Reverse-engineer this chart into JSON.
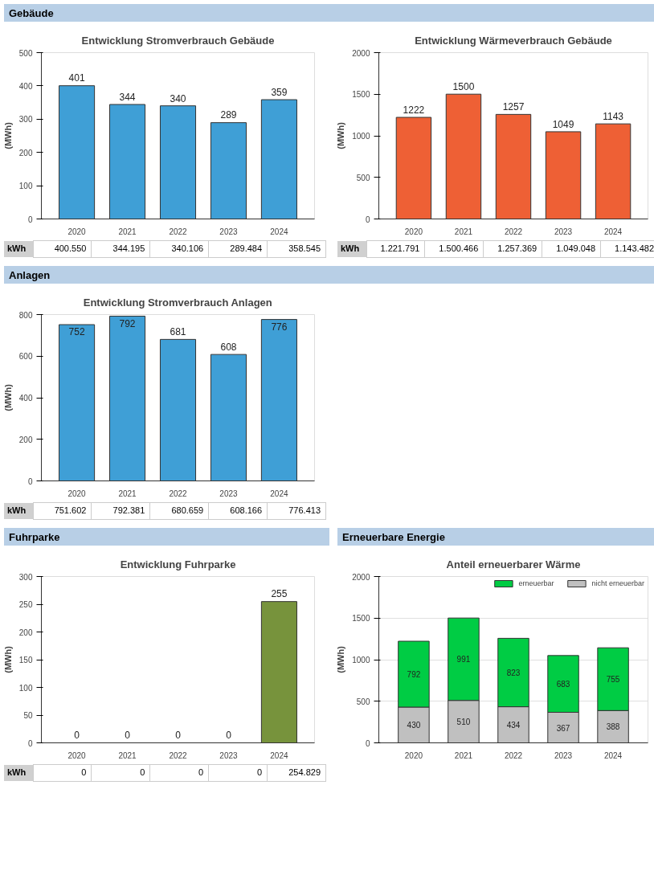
{
  "chart_data": [
    {
      "type": "bar",
      "title": "Entwicklung Stromverbrauch Gebäude",
      "ylabel": "(MWh)",
      "categories": [
        "2020",
        "2021",
        "2022",
        "2023",
        "2024"
      ],
      "values": [
        400.55,
        344.195,
        340.106,
        289.484,
        358.545
      ],
      "color": "#3f9fd6",
      "value_labels": [
        "401",
        "344",
        "340",
        "289",
        "359"
      ],
      "ylim": [
        0,
        500
      ],
      "yticks": [
        0,
        100,
        200,
        300,
        400,
        500
      ],
      "annotations": [
        "Gebäude",
        "kWh",
        "400.550",
        "344.195",
        "340.106",
        "289.484",
        "358.545"
      ]
    },
    {
      "type": "bar",
      "title": "Entwicklung Wärmeverbrauch Gebäude",
      "ylabel": "(MWh)",
      "categories": [
        "2020",
        "2021",
        "2022",
        "2023",
        "2024"
      ],
      "values": [
        1221.791,
        1500.466,
        1257.369,
        1049.048,
        1143.482
      ],
      "color": "#ee6035",
      "value_labels": [
        "1222",
        "1500",
        "1257",
        "1049",
        "1143"
      ],
      "ylim": [
        0,
        2000
      ],
      "yticks": [
        0,
        500,
        1000,
        1500,
        2000
      ],
      "annotations": [
        "kWh",
        "1.221.791",
        "1.500.466",
        "1.257.369",
        "1.049.048",
        "1.143.482"
      ]
    },
    {
      "type": "bar",
      "title": "Entwicklung Stromverbrauch Anlagen",
      "ylabel": "(MWh)",
      "categories": [
        "2020",
        "2021",
        "2022",
        "2023",
        "2024"
      ],
      "values": [
        751.602,
        792.381,
        680.659,
        608.166,
        776.413
      ],
      "color": "#3f9fd6",
      "value_labels": [
        "752",
        "792",
        "681",
        "608",
        "776"
      ],
      "ylim": [
        0,
        800
      ],
      "yticks": [
        0,
        200,
        400,
        600,
        800
      ],
      "annotations": [
        "Anlagen",
        "kWh",
        "751.602",
        "792.381",
        "680.659",
        "608.166",
        "776.413"
      ]
    },
    {
      "type": "bar",
      "title": "Entwicklung Fuhrparke",
      "ylabel": "(MWh)",
      "categories": [
        "2020",
        "2021",
        "2022",
        "2023",
        "2024"
      ],
      "values": [
        0,
        0,
        0,
        0,
        254.829
      ],
      "color": "#77933c",
      "value_labels": [
        "0",
        "0",
        "0",
        "0",
        "255"
      ],
      "ylim": [
        0,
        300
      ],
      "yticks": [
        0,
        50,
        100,
        150,
        200,
        250,
        300
      ],
      "annotations": [
        "Fuhrparke",
        "kWh",
        "0",
        "0",
        "0",
        "0",
        "254.829"
      ]
    },
    {
      "type": "bar",
      "title": "Anteil erneuerbarer Wärme",
      "ylabel": "(MWh)",
      "categories": [
        "2020",
        "2021",
        "2022",
        "2023",
        "2024"
      ],
      "stacked": true,
      "data_labels": true,
      "legend": "top right",
      "grid": "y",
      "ylim": [
        0,
        2000
      ],
      "yticks": [
        0,
        500,
        1000,
        1500,
        2000
      ],
      "series": [
        {
          "name": "nicht erneuerbar",
          "color": "#c0c0c0",
          "values": [
            430,
            510,
            434,
            367,
            388
          ]
        },
        {
          "name": "erneuerbar",
          "color": "#00cc44",
          "values": [
            792,
            991,
            823,
            683,
            755
          ]
        }
      ],
      "annotations": [
        "Erneuerbare Energie"
      ]
    }
  ]
}
